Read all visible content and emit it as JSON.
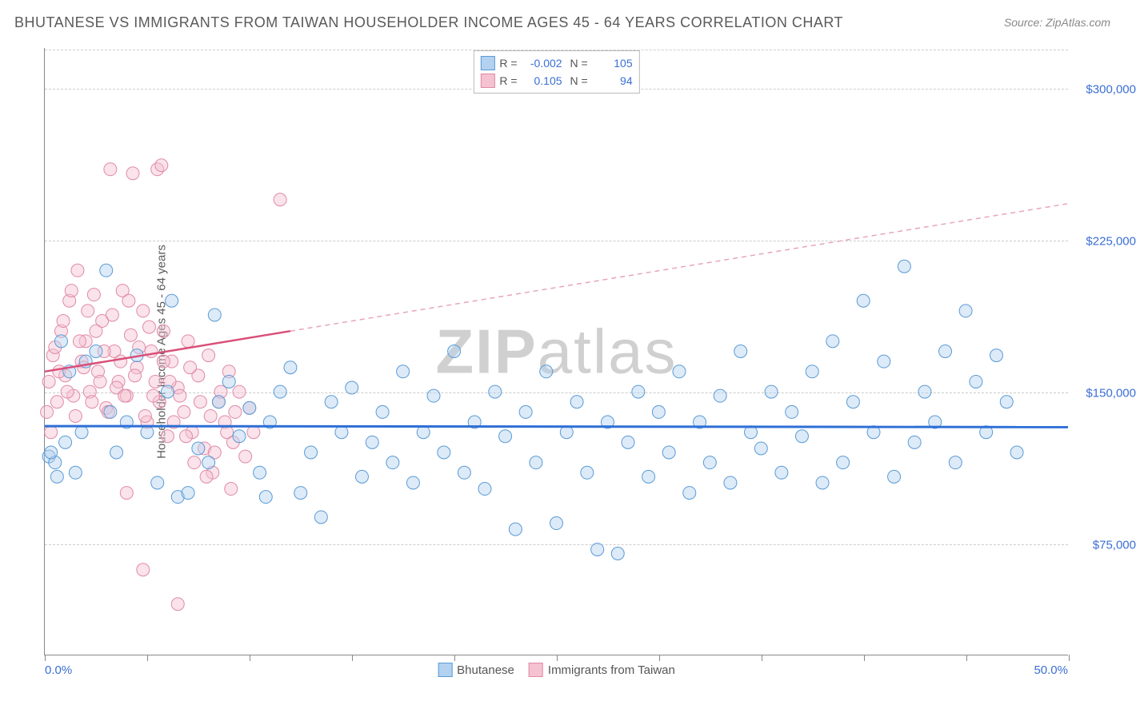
{
  "title": "BHUTANESE VS IMMIGRANTS FROM TAIWAN HOUSEHOLDER INCOME AGES 45 - 64 YEARS CORRELATION CHART",
  "source": "Source: ZipAtlas.com",
  "y_axis_label": "Householder Income Ages 45 - 64 years",
  "watermark": "ZIPatlas",
  "x_range": {
    "min_label": "0.0%",
    "max_label": "50.0%",
    "min": 0,
    "max": 50
  },
  "y_range": {
    "min": 20000,
    "max": 320000
  },
  "y_ticks": [
    {
      "value": 75000,
      "label": "$75,000"
    },
    {
      "value": 150000,
      "label": "$150,000"
    },
    {
      "value": 225000,
      "label": "$225,000"
    },
    {
      "value": 300000,
      "label": "$300,000"
    }
  ],
  "x_tick_positions": [
    0,
    5,
    10,
    15,
    20,
    25,
    30,
    35,
    40,
    45,
    50
  ],
  "colors": {
    "series1_fill": "#b3d1f0",
    "series1_stroke": "#5a9bd5",
    "series2_fill": "#f5c2d1",
    "series2_stroke": "#e08aa8",
    "trend1": "#2e6fd6",
    "trend2_solid": "#d94f7a",
    "trend2_dash": "#e8a5b8",
    "grid": "#cccccc",
    "axis_text": "#3b6fd4",
    "title_text": "#5a5a5a",
    "watermark": "#d0d0d0"
  },
  "stats": {
    "series1": {
      "R": "-0.002",
      "N": "105"
    },
    "series2": {
      "R": "0.105",
      "N": "94"
    }
  },
  "legend": {
    "series1": "Bhutanese",
    "series2": "Immigrants from Taiwan"
  },
  "trend_lines": {
    "series1": {
      "x1": 0,
      "y1": 133000,
      "x2": 50,
      "y2": 132500
    },
    "series2": {
      "x1": 0,
      "y1": 160000,
      "x2": 12,
      "y2": 180000,
      "x3": 50,
      "y3": 243000
    }
  },
  "marker_radius": 8,
  "marker_opacity": 0.45,
  "series1_points": [
    [
      0.2,
      118000
    ],
    [
      0.5,
      115000
    ],
    [
      0.8,
      175000
    ],
    [
      1.0,
      125000
    ],
    [
      1.2,
      160000
    ],
    [
      1.5,
      110000
    ],
    [
      2.0,
      165000
    ],
    [
      2.5,
      170000
    ],
    [
      3.0,
      210000
    ],
    [
      3.2,
      140000
    ],
    [
      3.5,
      120000
    ],
    [
      4.0,
      135000
    ],
    [
      4.5,
      168000
    ],
    [
      5.0,
      130000
    ],
    [
      5.5,
      105000
    ],
    [
      6.0,
      150000
    ],
    [
      6.2,
      195000
    ],
    [
      6.5,
      98000
    ],
    [
      7.0,
      100000
    ],
    [
      7.5,
      122000
    ],
    [
      8.0,
      115000
    ],
    [
      8.3,
      188000
    ],
    [
      8.5,
      145000
    ],
    [
      9.0,
      155000
    ],
    [
      9.5,
      128000
    ],
    [
      10.0,
      142000
    ],
    [
      10.5,
      110000
    ],
    [
      10.8,
      98000
    ],
    [
      11.0,
      135000
    ],
    [
      11.5,
      150000
    ],
    [
      12.0,
      162000
    ],
    [
      12.5,
      100000
    ],
    [
      13.0,
      120000
    ],
    [
      13.5,
      88000
    ],
    [
      14.0,
      145000
    ],
    [
      14.5,
      130000
    ],
    [
      15.0,
      152000
    ],
    [
      15.5,
      108000
    ],
    [
      16.0,
      125000
    ],
    [
      16.5,
      140000
    ],
    [
      17.0,
      115000
    ],
    [
      17.5,
      160000
    ],
    [
      18.0,
      105000
    ],
    [
      18.5,
      130000
    ],
    [
      19.0,
      148000
    ],
    [
      19.5,
      120000
    ],
    [
      20.0,
      170000
    ],
    [
      20.5,
      110000
    ],
    [
      21.0,
      135000
    ],
    [
      21.5,
      102000
    ],
    [
      22.0,
      150000
    ],
    [
      22.5,
      128000
    ],
    [
      23.0,
      82000
    ],
    [
      23.5,
      140000
    ],
    [
      24.0,
      115000
    ],
    [
      24.5,
      160000
    ],
    [
      25.0,
      85000
    ],
    [
      25.5,
      130000
    ],
    [
      26.0,
      145000
    ],
    [
      26.5,
      110000
    ],
    [
      27.0,
      72000
    ],
    [
      27.5,
      135000
    ],
    [
      28.0,
      70000
    ],
    [
      28.5,
      125000
    ],
    [
      29.0,
      150000
    ],
    [
      29.5,
      108000
    ],
    [
      30.0,
      140000
    ],
    [
      30.5,
      120000
    ],
    [
      31.0,
      160000
    ],
    [
      31.5,
      100000
    ],
    [
      32.0,
      135000
    ],
    [
      32.5,
      115000
    ],
    [
      33.0,
      148000
    ],
    [
      33.5,
      105000
    ],
    [
      34.0,
      170000
    ],
    [
      34.5,
      130000
    ],
    [
      35.0,
      122000
    ],
    [
      35.5,
      150000
    ],
    [
      36.0,
      110000
    ],
    [
      36.5,
      140000
    ],
    [
      37.0,
      128000
    ],
    [
      37.5,
      160000
    ],
    [
      38.0,
      105000
    ],
    [
      38.5,
      175000
    ],
    [
      39.0,
      115000
    ],
    [
      39.5,
      145000
    ],
    [
      40.0,
      195000
    ],
    [
      40.5,
      130000
    ],
    [
      41.0,
      165000
    ],
    [
      41.5,
      108000
    ],
    [
      42.0,
      212000
    ],
    [
      42.5,
      125000
    ],
    [
      43.0,
      150000
    ],
    [
      43.5,
      135000
    ],
    [
      44.0,
      170000
    ],
    [
      44.5,
      115000
    ],
    [
      45.0,
      190000
    ],
    [
      45.5,
      155000
    ],
    [
      46.0,
      130000
    ],
    [
      46.5,
      168000
    ],
    [
      47.0,
      145000
    ],
    [
      47.5,
      120000
    ],
    [
      0.3,
      120000
    ],
    [
      0.6,
      108000
    ],
    [
      1.8,
      130000
    ]
  ],
  "series2_points": [
    [
      0.2,
      155000
    ],
    [
      0.4,
      168000
    ],
    [
      0.6,
      145000
    ],
    [
      0.8,
      180000
    ],
    [
      1.0,
      158000
    ],
    [
      1.2,
      195000
    ],
    [
      1.4,
      148000
    ],
    [
      1.6,
      210000
    ],
    [
      1.8,
      165000
    ],
    [
      2.0,
      175000
    ],
    [
      2.2,
      150000
    ],
    [
      2.4,
      198000
    ],
    [
      2.6,
      160000
    ],
    [
      2.8,
      185000
    ],
    [
      3.0,
      142000
    ],
    [
      3.2,
      260000
    ],
    [
      3.4,
      170000
    ],
    [
      3.6,
      155000
    ],
    [
      3.8,
      200000
    ],
    [
      4.0,
      148000
    ],
    [
      4.2,
      178000
    ],
    [
      4.3,
      258000
    ],
    [
      4.5,
      162000
    ],
    [
      4.8,
      190000
    ],
    [
      5.0,
      135000
    ],
    [
      5.2,
      170000
    ],
    [
      5.4,
      155000
    ],
    [
      5.5,
      260000
    ],
    [
      5.6,
      145000
    ],
    [
      5.7,
      262000
    ],
    [
      5.8,
      180000
    ],
    [
      6.0,
      128000
    ],
    [
      6.2,
      165000
    ],
    [
      6.5,
      152000
    ],
    [
      6.8,
      140000
    ],
    [
      7.0,
      175000
    ],
    [
      7.2,
      130000
    ],
    [
      7.5,
      158000
    ],
    [
      7.8,
      122000
    ],
    [
      8.0,
      168000
    ],
    [
      8.2,
      110000
    ],
    [
      8.5,
      145000
    ],
    [
      8.8,
      135000
    ],
    [
      9.0,
      160000
    ],
    [
      9.2,
      125000
    ],
    [
      9.5,
      150000
    ],
    [
      9.8,
      118000
    ],
    [
      10.0,
      142000
    ],
    [
      10.2,
      130000
    ],
    [
      11.5,
      245000
    ],
    [
      0.3,
      130000
    ],
    [
      0.5,
      172000
    ],
    [
      0.7,
      160000
    ],
    [
      0.9,
      185000
    ],
    [
      1.1,
      150000
    ],
    [
      1.3,
      200000
    ],
    [
      1.5,
      138000
    ],
    [
      1.7,
      175000
    ],
    [
      1.9,
      162000
    ],
    [
      2.1,
      190000
    ],
    [
      2.3,
      145000
    ],
    [
      2.5,
      180000
    ],
    [
      2.7,
      155000
    ],
    [
      2.9,
      170000
    ],
    [
      3.1,
      140000
    ],
    [
      3.3,
      188000
    ],
    [
      3.5,
      152000
    ],
    [
      3.7,
      165000
    ],
    [
      3.9,
      148000
    ],
    [
      4.1,
      195000
    ],
    [
      4.4,
      158000
    ],
    [
      4.6,
      172000
    ],
    [
      4.9,
      138000
    ],
    [
      5.1,
      182000
    ],
    [
      5.3,
      148000
    ],
    [
      5.8,
      165000
    ],
    [
      6.1,
      155000
    ],
    [
      6.3,
      135000
    ],
    [
      6.6,
      148000
    ],
    [
      6.9,
      128000
    ],
    [
      7.1,
      162000
    ],
    [
      7.3,
      115000
    ],
    [
      7.6,
      145000
    ],
    [
      7.9,
      108000
    ],
    [
      8.1,
      138000
    ],
    [
      8.3,
      120000
    ],
    [
      8.6,
      150000
    ],
    [
      8.9,
      130000
    ],
    [
      9.1,
      102000
    ],
    [
      9.3,
      140000
    ],
    [
      4.0,
      100000
    ],
    [
      4.8,
      62000
    ],
    [
      6.5,
      45000
    ],
    [
      0.1,
      140000
    ]
  ]
}
